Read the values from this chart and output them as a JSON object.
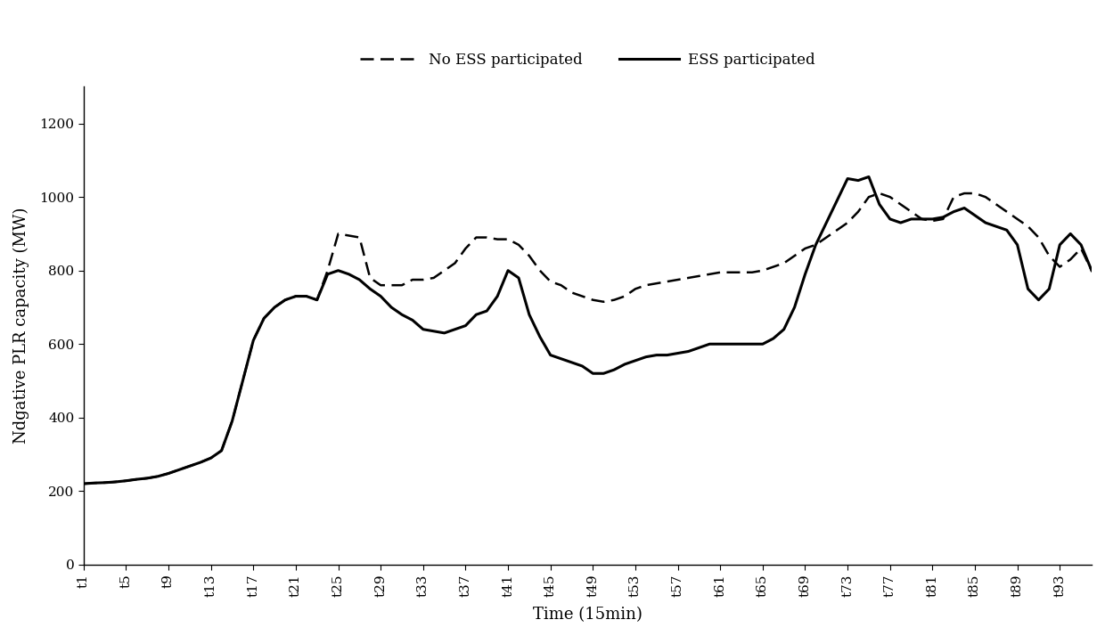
{
  "x_labels": [
    "t1",
    "t5",
    "t9",
    "t13",
    "t17",
    "t21",
    "t25",
    "t29",
    "t33",
    "t37",
    "t41",
    "t45",
    "t49",
    "t53",
    "t57",
    "t61",
    "t65",
    "t69",
    "t73",
    "t77",
    "t81",
    "t85",
    "t89",
    "t93"
  ],
  "x_ticks": [
    1,
    5,
    9,
    13,
    17,
    21,
    25,
    29,
    33,
    37,
    41,
    45,
    49,
    53,
    57,
    61,
    65,
    69,
    73,
    77,
    81,
    85,
    89,
    93
  ],
  "no_ess_vals": [
    220,
    222,
    223,
    225,
    228,
    232,
    235,
    240,
    248,
    258,
    268,
    278,
    290,
    310,
    390,
    500,
    610,
    670,
    700,
    720,
    730,
    730,
    720,
    800,
    900,
    895,
    890,
    780,
    760,
    760,
    760,
    775,
    775,
    780,
    800,
    820,
    860,
    890,
    890,
    885,
    885,
    870,
    840,
    800,
    770,
    760,
    740,
    730,
    720,
    715,
    720,
    730,
    750,
    760,
    765,
    770,
    775,
    780,
    785,
    790,
    795,
    795,
    795,
    795,
    800,
    810,
    820,
    840,
    860,
    870,
    890,
    910,
    930,
    960,
    1000,
    1010,
    1000,
    980,
    960,
    940,
    935,
    940,
    1000,
    1010,
    1010,
    1000,
    980,
    960,
    940,
    920,
    890,
    840,
    810,
    830,
    860,
    800
  ],
  "ess_vals": [
    220,
    222,
    223,
    225,
    228,
    232,
    235,
    240,
    248,
    258,
    268,
    278,
    290,
    310,
    390,
    500,
    610,
    670,
    700,
    720,
    730,
    730,
    720,
    790,
    800,
    790,
    775,
    750,
    730,
    700,
    680,
    665,
    640,
    635,
    630,
    640,
    650,
    680,
    690,
    730,
    800,
    780,
    680,
    620,
    570,
    560,
    550,
    540,
    520,
    520,
    530,
    545,
    555,
    565,
    570,
    570,
    575,
    580,
    590,
    600,
    600,
    600,
    600,
    600,
    600,
    615,
    640,
    700,
    790,
    870,
    930,
    990,
    1050,
    1045,
    1055,
    980,
    940,
    930,
    940,
    940,
    940,
    945,
    960,
    970,
    950,
    930,
    920,
    910,
    870,
    750,
    720,
    750,
    870,
    900,
    870,
    800
  ],
  "ylabel": "Ndgative PLR capacity (MW)",
  "xlabel": "Time (15min)",
  "legend_no_ess": "No ESS participated",
  "legend_ess": "ESS participated",
  "ylim": [
    0,
    1300
  ],
  "yticks": [
    0,
    200,
    400,
    600,
    800,
    1000,
    1200
  ],
  "bg_color": "#ffffff",
  "line_color": "#000000"
}
